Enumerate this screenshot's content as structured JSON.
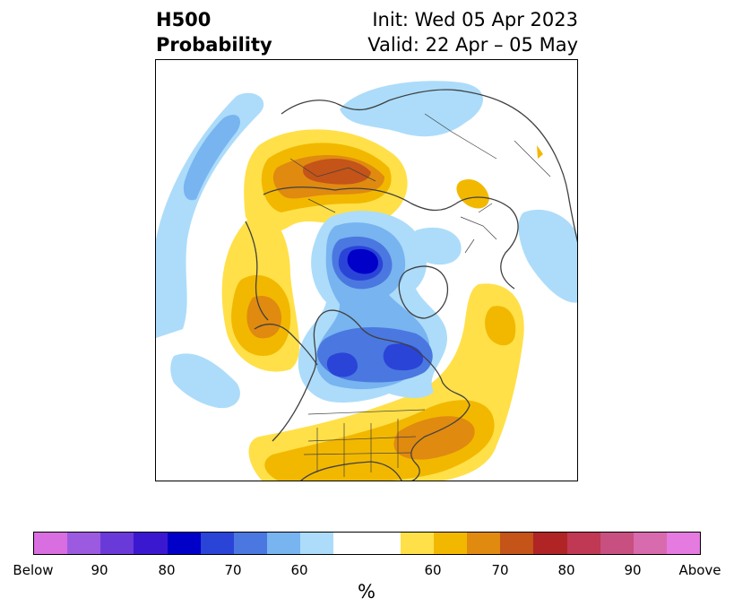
{
  "header": {
    "title_line1": "H500",
    "title_line2": "Probability",
    "init": "Init: Wed 05 Apr 2023",
    "valid": "Valid: 22 Apr – 05 May"
  },
  "colorbar": {
    "unit": "%",
    "ticks": [
      "Below",
      "90",
      "80",
      "70",
      "60",
      "60",
      "70",
      "80",
      "90",
      "Above"
    ],
    "colors": [
      "#d96ee0",
      "#9c5ae0",
      "#6a3ad8",
      "#3a18d0",
      "#0000c8",
      "#2a44d8",
      "#4a78e0",
      "#78b4f0",
      "#acdcfa",
      "#ffffff",
      "#ffffff",
      "#ffe048",
      "#f2b800",
      "#e08a10",
      "#c45418",
      "#b02426",
      "#c03854",
      "#c85080",
      "#d86aae",
      "#e57ae0"
    ]
  },
  "map": {
    "projection": "north polar stereographic",
    "field": "500 hPa height anomaly probability",
    "colors": {
      "above_light": "#ffe048",
      "above_mid": "#f2b800",
      "above_strong": "#e08a10",
      "above_peak": "#c45418",
      "below_light": "#acdcfa",
      "below_mid": "#78b4f0",
      "below_strong": "#4a78e0",
      "below_deep": "#2a44d8",
      "below_peak": "#0000c8",
      "coastline": "#404040"
    }
  }
}
